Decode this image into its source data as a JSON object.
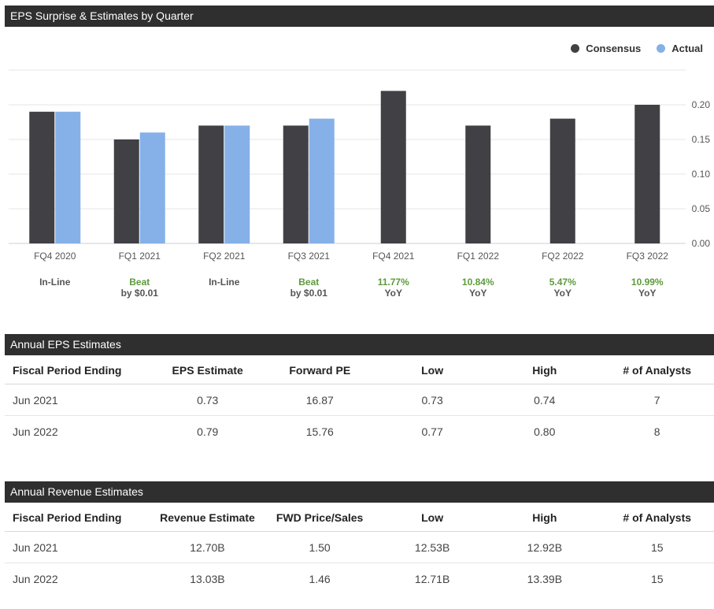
{
  "eps_section": {
    "title": "EPS Surprise & Estimates by Quarter"
  },
  "colors": {
    "consensus": "#414045",
    "actual": "#86b0e8",
    "beat": "#5d9a3b",
    "neutral": "#555555",
    "header_bg": "#2f2f2f"
  },
  "chart_data": {
    "type": "bar",
    "title": "EPS Surprise & Estimates by Quarter",
    "categories": [
      "FQ4 2020",
      "FQ1 2021",
      "FQ2 2021",
      "FQ3 2021",
      "FQ4 2021",
      "FQ1 2022",
      "FQ2 2022",
      "FQ3 2022"
    ],
    "series": [
      {
        "name": "Consensus",
        "values": [
          0.19,
          0.15,
          0.17,
          0.17,
          0.22,
          0.17,
          0.18,
          0.2
        ]
      },
      {
        "name": "Actual",
        "values": [
          0.19,
          0.16,
          0.17,
          0.18,
          null,
          null,
          null,
          null
        ]
      }
    ],
    "yticks": [
      "0.00",
      "0.05",
      "0.10",
      "0.15",
      "0.20"
    ],
    "ylim": [
      0,
      0.25
    ],
    "y_axis_side": "right",
    "legend_position": "top-right",
    "grid": true,
    "annotations": [
      {
        "line1": "In-Line",
        "line2": "",
        "status": "neutral"
      },
      {
        "line1": "Beat",
        "line2": "by $0.01",
        "status": "beat"
      },
      {
        "line1": "In-Line",
        "line2": "",
        "status": "neutral"
      },
      {
        "line1": "Beat",
        "line2": "by $0.01",
        "status": "beat"
      },
      {
        "line1": "11.77%",
        "line2": "YoY",
        "status": "growth"
      },
      {
        "line1": "10.84%",
        "line2": "YoY",
        "status": "growth"
      },
      {
        "line1": "5.47%",
        "line2": "YoY",
        "status": "growth"
      },
      {
        "line1": "10.99%",
        "line2": "YoY",
        "status": "growth"
      }
    ]
  },
  "annual_eps": {
    "title": "Annual EPS Estimates",
    "columns": [
      "Fiscal Period Ending",
      "EPS Estimate",
      "Forward PE",
      "Low",
      "High",
      "# of Analysts"
    ],
    "rows": [
      [
        "Jun 2021",
        "0.73",
        "16.87",
        "0.73",
        "0.74",
        "7"
      ],
      [
        "Jun 2022",
        "0.79",
        "15.76",
        "0.77",
        "0.80",
        "8"
      ]
    ]
  },
  "annual_revenue": {
    "title": "Annual Revenue Estimates",
    "columns": [
      "Fiscal Period Ending",
      "Revenue Estimate",
      "FWD Price/Sales",
      "Low",
      "High",
      "# of Analysts"
    ],
    "rows": [
      [
        "Jun 2021",
        "12.70B",
        "1.50",
        "12.53B",
        "12.92B",
        "15"
      ],
      [
        "Jun 2022",
        "13.03B",
        "1.46",
        "12.71B",
        "13.39B",
        "15"
      ]
    ]
  }
}
